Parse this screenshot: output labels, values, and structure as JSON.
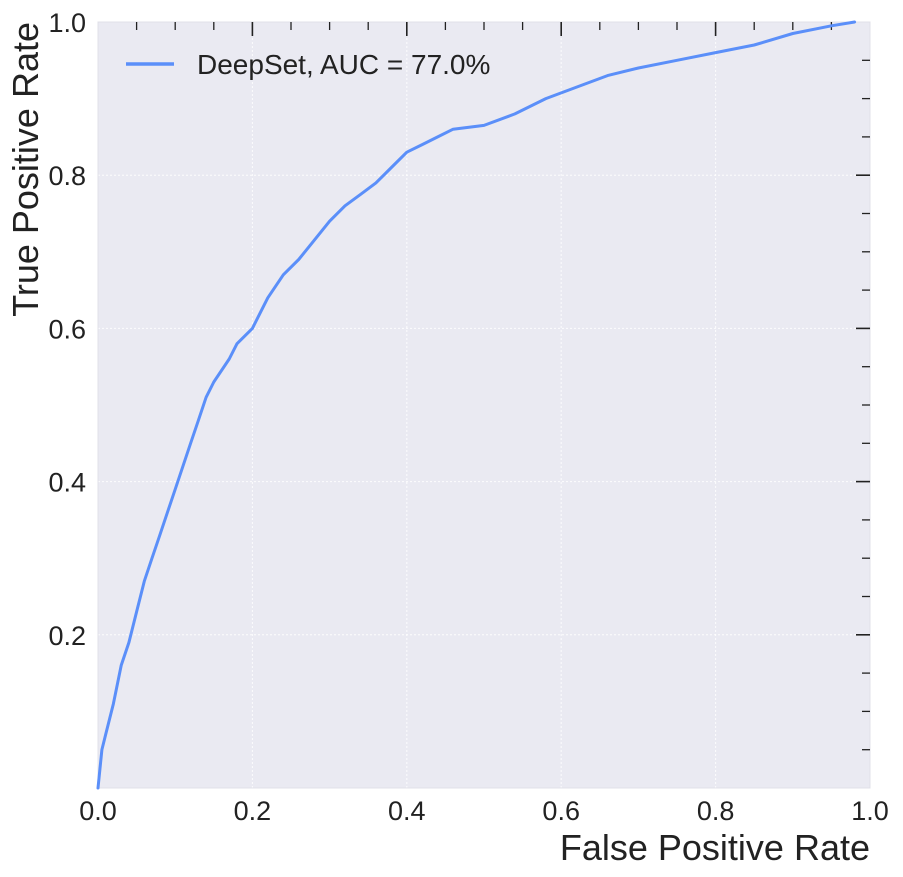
{
  "chart_data": {
    "type": "line",
    "xlabel": "False Positive Rate",
    "ylabel": "True Positive Rate",
    "xlim": [
      0.0,
      1.0
    ],
    "ylim": [
      0.0,
      1.0
    ],
    "x_ticks": [
      "0.0",
      "0.2",
      "0.4",
      "0.6",
      "0.8",
      "1.0"
    ],
    "y_ticks": [
      "0.2",
      "0.4",
      "0.6",
      "0.8",
      "1.0"
    ],
    "grid": true,
    "legend_position": "top-left",
    "background_color": "#eaeaf2",
    "series": [
      {
        "name": "DeepSet, AUC = 77.0%",
        "color": "#5b8ff9",
        "x": [
          0.0,
          0.005,
          0.01,
          0.02,
          0.03,
          0.04,
          0.05,
          0.06,
          0.07,
          0.08,
          0.09,
          0.1,
          0.11,
          0.12,
          0.13,
          0.14,
          0.15,
          0.16,
          0.17,
          0.18,
          0.19,
          0.2,
          0.21,
          0.22,
          0.24,
          0.26,
          0.28,
          0.3,
          0.32,
          0.34,
          0.36,
          0.38,
          0.4,
          0.42,
          0.44,
          0.46,
          0.5,
          0.54,
          0.58,
          0.62,
          0.66,
          0.7,
          0.75,
          0.8,
          0.85,
          0.9,
          0.95,
          0.98
        ],
        "y": [
          0.0,
          0.05,
          0.07,
          0.11,
          0.16,
          0.19,
          0.23,
          0.27,
          0.3,
          0.33,
          0.36,
          0.39,
          0.42,
          0.45,
          0.48,
          0.51,
          0.53,
          0.545,
          0.56,
          0.58,
          0.59,
          0.6,
          0.62,
          0.64,
          0.67,
          0.69,
          0.715,
          0.74,
          0.76,
          0.775,
          0.79,
          0.81,
          0.83,
          0.84,
          0.85,
          0.86,
          0.865,
          0.88,
          0.9,
          0.915,
          0.93,
          0.94,
          0.95,
          0.96,
          0.97,
          0.985,
          0.995,
          1.0
        ]
      }
    ]
  }
}
